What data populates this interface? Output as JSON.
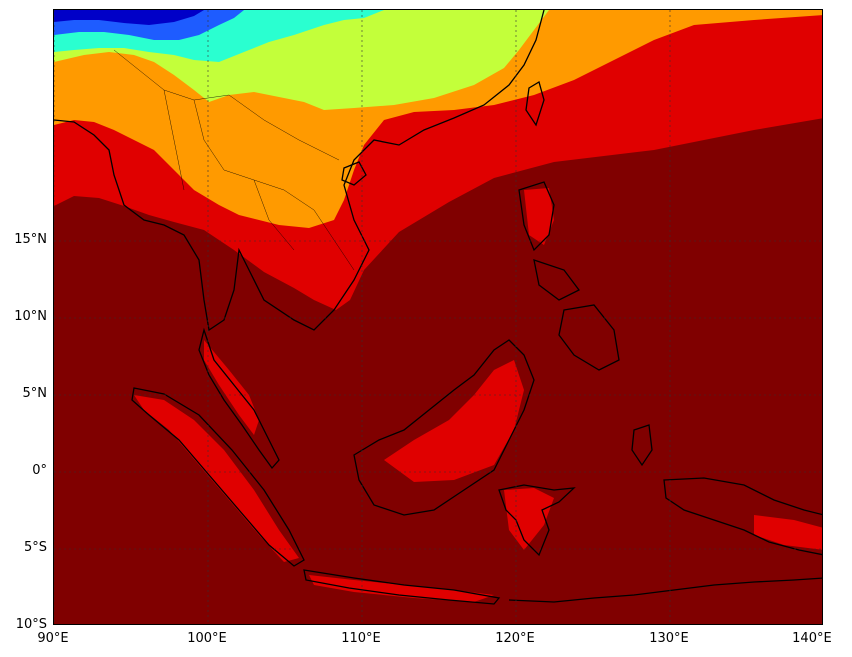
{
  "map": {
    "projection": "cylindrical",
    "lon_range": [
      90,
      140
    ],
    "lat_range": [
      -10,
      30
    ],
    "colors": {
      "deep_blue": "#0000c8",
      "blue": "#1e5cff",
      "cyan": "#2affd0",
      "teal": "#3de8c8",
      "light_green": "#c3ff3a",
      "orange": "#ff9a00",
      "red": "#e00000",
      "dark_red": "#800000",
      "coastline": "#000000",
      "gridline": "#333333"
    }
  },
  "axes": {
    "lat_ticks": [
      {
        "value": 15,
        "label": "15°N"
      },
      {
        "value": 10,
        "label": "10°N"
      },
      {
        "value": 5,
        "label": "5°N"
      },
      {
        "value": 0,
        "label": "0°"
      },
      {
        "value": -5,
        "label": "5°S"
      },
      {
        "value": -10,
        "label": "10°S"
      }
    ],
    "lon_ticks": [
      {
        "value": 90,
        "label": "90°E"
      },
      {
        "value": 100,
        "label": "100°E"
      },
      {
        "value": 110,
        "label": "110°E"
      },
      {
        "value": 120,
        "label": "120°E"
      },
      {
        "value": 130,
        "label": "130°E"
      },
      {
        "value": 140,
        "label": "140°E"
      }
    ]
  }
}
